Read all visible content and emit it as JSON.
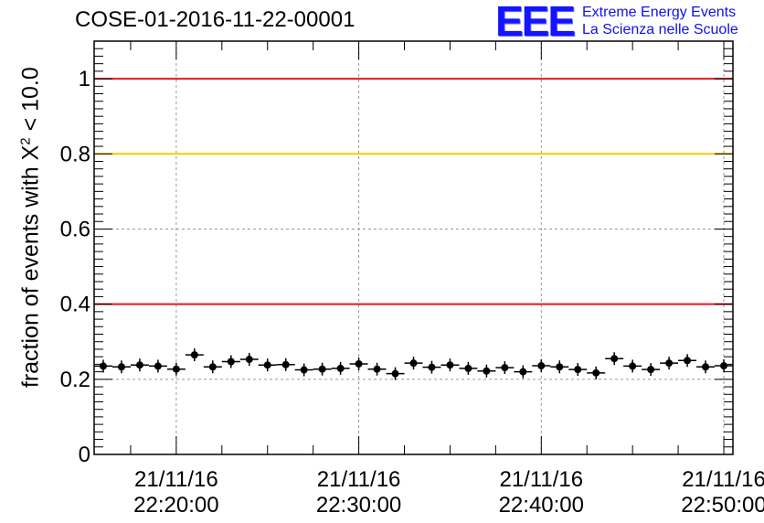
{
  "header": {
    "title": "COSE-01-2016-11-22-00001",
    "logo_mark": "EEE",
    "logo_line1": "Extreme Energy Events",
    "logo_line2": "La Scienza nelle Scuole"
  },
  "chart_data": {
    "type": "scatter",
    "title": "COSE-01-2016-11-22-00001",
    "ylabel_prefix": "fraction of events with X",
    "ylabel_sup": "2",
    "ylabel_suffix": " < 10.0",
    "xlabel": "",
    "ylim": [
      0,
      1.1
    ],
    "xlim": [
      "21/11/16 22:15:30",
      "21/11/16 22:50:30"
    ],
    "y_ticks": [
      {
        "value": 0,
        "label": "0"
      },
      {
        "value": 0.2,
        "label": "0.2"
      },
      {
        "value": 0.4,
        "label": "0.4"
      },
      {
        "value": 0.6,
        "label": "0.6"
      },
      {
        "value": 0.8,
        "label": "0.8"
      },
      {
        "value": 1,
        "label": "1"
      }
    ],
    "x_ticks": [
      {
        "time": "21/11/16 22:20:00",
        "date": "21/11/16",
        "clock": "22:20:00"
      },
      {
        "time": "21/11/16 22:30:00",
        "date": "21/11/16",
        "clock": "22:30:00"
      },
      {
        "time": "21/11/16 22:40:00",
        "date": "21/11/16",
        "clock": "22:40:00"
      },
      {
        "time": "21/11/16 22:50:00",
        "date": "21/11/16",
        "clock": "22:50:00"
      }
    ],
    "grid": true,
    "reference_lines": [
      {
        "y": 1.0,
        "color": "#e8141e"
      },
      {
        "y": 0.8,
        "color": "#ffc800"
      },
      {
        "y": 0.4,
        "color": "#e8141e"
      }
    ],
    "bin_width_seconds": 60,
    "series": [
      {
        "color": "#000000",
        "x": [
          "22:16:00",
          "22:17:00",
          "22:18:00",
          "22:19:00",
          "22:20:00",
          "22:21:00",
          "22:22:00",
          "22:23:00",
          "22:24:00",
          "22:25:00",
          "22:26:00",
          "22:27:00",
          "22:28:00",
          "22:29:00",
          "22:30:00",
          "22:31:00",
          "22:32:00",
          "22:33:00",
          "22:34:00",
          "22:35:00",
          "22:36:00",
          "22:37:00",
          "22:38:00",
          "22:39:00",
          "22:40:00",
          "22:41:00",
          "22:42:00",
          "22:43:00",
          "22:44:00",
          "22:45:00",
          "22:46:00",
          "22:47:00",
          "22:48:00",
          "22:49:00",
          "22:50:00"
        ],
        "y": [
          0.235,
          0.233,
          0.238,
          0.235,
          0.227,
          0.265,
          0.233,
          0.247,
          0.253,
          0.238,
          0.239,
          0.225,
          0.227,
          0.229,
          0.241,
          0.227,
          0.215,
          0.243,
          0.232,
          0.238,
          0.229,
          0.222,
          0.231,
          0.22,
          0.236,
          0.233,
          0.226,
          0.217,
          0.255,
          0.235,
          0.226,
          0.243,
          0.25,
          0.233,
          0.236
        ]
      }
    ]
  }
}
